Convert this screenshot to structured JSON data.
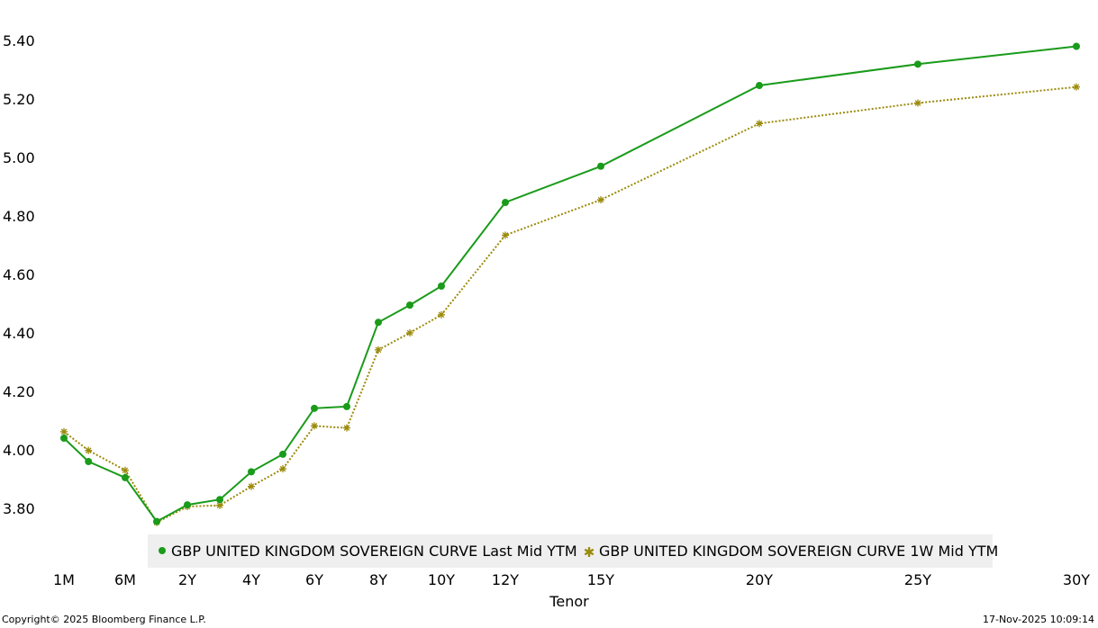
{
  "chart_data": {
    "type": "line",
    "title": "",
    "xlabel": "Tenor",
    "ylabel": "",
    "ylim": [
      3.65,
      5.45
    ],
    "y_ticks": [
      "3.80",
      "4.00",
      "4.20",
      "4.40",
      "4.60",
      "4.80",
      "5.00",
      "5.20",
      "5.40"
    ],
    "x_tick_labels": [
      "1M",
      "6M",
      "2Y",
      "4Y",
      "6Y",
      "8Y",
      "10Y",
      "12Y",
      "15Y",
      "20Y",
      "25Y",
      "30Y"
    ],
    "x": [
      0.0833,
      0.25,
      0.5,
      1,
      2,
      3,
      4,
      5,
      6,
      7,
      8,
      9,
      10,
      12,
      15,
      20,
      25,
      30
    ],
    "series": [
      {
        "name": "GBP UNITED KINGDOM SOVEREIGN CURVE Last Mid YTM",
        "color": "#1a9b1a",
        "style": "solid",
        "marker": "circle",
        "values": [
          4.04,
          3.96,
          3.905,
          3.755,
          3.812,
          3.83,
          3.925,
          3.985,
          4.142,
          4.148,
          4.436,
          4.495,
          4.56,
          4.846,
          4.97,
          5.246,
          5.319,
          5.38
        ]
      },
      {
        "name": "GBP UNITED KINGDOM SOVEREIGN CURVE 1W Mid YTM",
        "color": "#9b8a0a",
        "style": "dotted",
        "marker": "star",
        "values": [
          4.062,
          3.998,
          3.93,
          3.752,
          3.806,
          3.81,
          3.875,
          3.935,
          4.082,
          4.075,
          4.342,
          4.4,
          4.462,
          4.734,
          4.855,
          5.116,
          5.186,
          5.241
        ]
      }
    ],
    "grid": false,
    "legend_position": "bottom-inside"
  },
  "footer": {
    "copyright": "Copyright© 2025 Bloomberg Finance L.P.",
    "timestamp": "17-Nov-2025 10:09:14"
  }
}
